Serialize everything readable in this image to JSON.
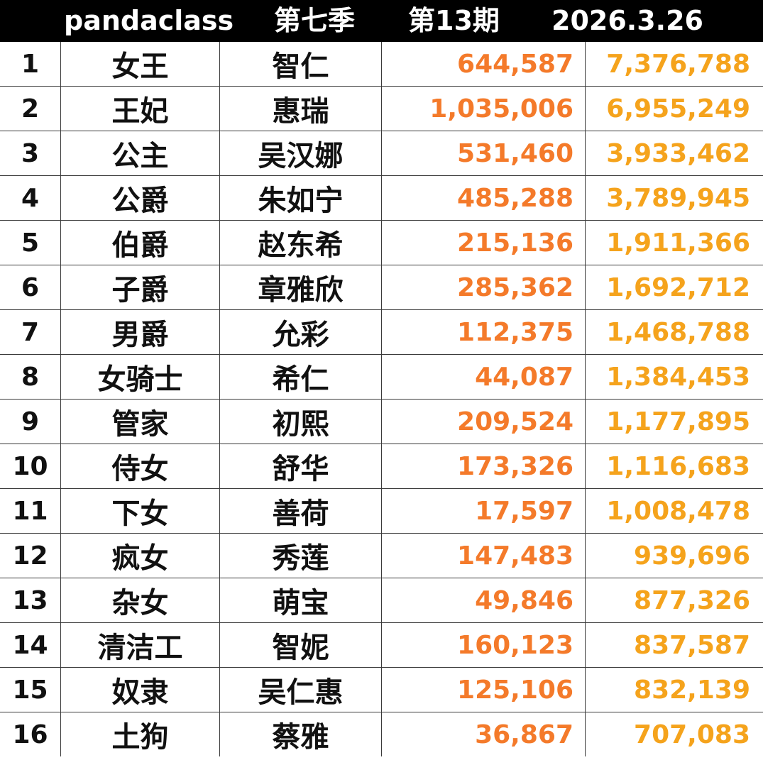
{
  "header": {
    "brand": "pandaclass",
    "season": "第七季",
    "episode": "第13期",
    "date": "2026.3.26"
  },
  "colors": {
    "episode_points": "#f47a2a",
    "total_points": "#f5a31c",
    "header_bg": "#000000"
  },
  "rows": [
    {
      "rank": "1",
      "title": "女王",
      "name": "智仁",
      "episode": "644,587",
      "total": "7,376,788"
    },
    {
      "rank": "2",
      "title": "王妃",
      "name": "惠瑞",
      "episode": "1,035,006",
      "total": "6,955,249"
    },
    {
      "rank": "3",
      "title": "公主",
      "name": "吴汉娜",
      "episode": "531,460",
      "total": "3,933,462"
    },
    {
      "rank": "4",
      "title": "公爵",
      "name": "朱如宁",
      "episode": "485,288",
      "total": "3,789,945"
    },
    {
      "rank": "5",
      "title": "伯爵",
      "name": "赵东希",
      "episode": "215,136",
      "total": "1,911,366"
    },
    {
      "rank": "6",
      "title": "子爵",
      "name": "章雅欣",
      "episode": "285,362",
      "total": "1,692,712"
    },
    {
      "rank": "7",
      "title": "男爵",
      "name": "允彩",
      "episode": "112,375",
      "total": "1,468,788"
    },
    {
      "rank": "8",
      "title": "女骑士",
      "name": "希仁",
      "episode": "44,087",
      "total": "1,384,453"
    },
    {
      "rank": "9",
      "title": "管家",
      "name": "初熙",
      "episode": "209,524",
      "total": "1,177,895"
    },
    {
      "rank": "10",
      "title": "侍女",
      "name": "舒华",
      "episode": "173,326",
      "total": "1,116,683"
    },
    {
      "rank": "11",
      "title": "下女",
      "name": "善荷",
      "episode": "17,597",
      "total": "1,008,478"
    },
    {
      "rank": "12",
      "title": "疯女",
      "name": "秀莲",
      "episode": "147,483",
      "total": "939,696"
    },
    {
      "rank": "13",
      "title": "杂女",
      "name": "萌宝",
      "episode": "49,846",
      "total": "877,326"
    },
    {
      "rank": "14",
      "title": "清洁工",
      "name": "智妮",
      "episode": "160,123",
      "total": "837,587"
    },
    {
      "rank": "15",
      "title": "奴隶",
      "name": "吴仁惠",
      "episode": "125,106",
      "total": "832,139"
    },
    {
      "rank": "16",
      "title": "土狗",
      "name": "蔡雅",
      "episode": "36,867",
      "total": "707,083"
    }
  ]
}
